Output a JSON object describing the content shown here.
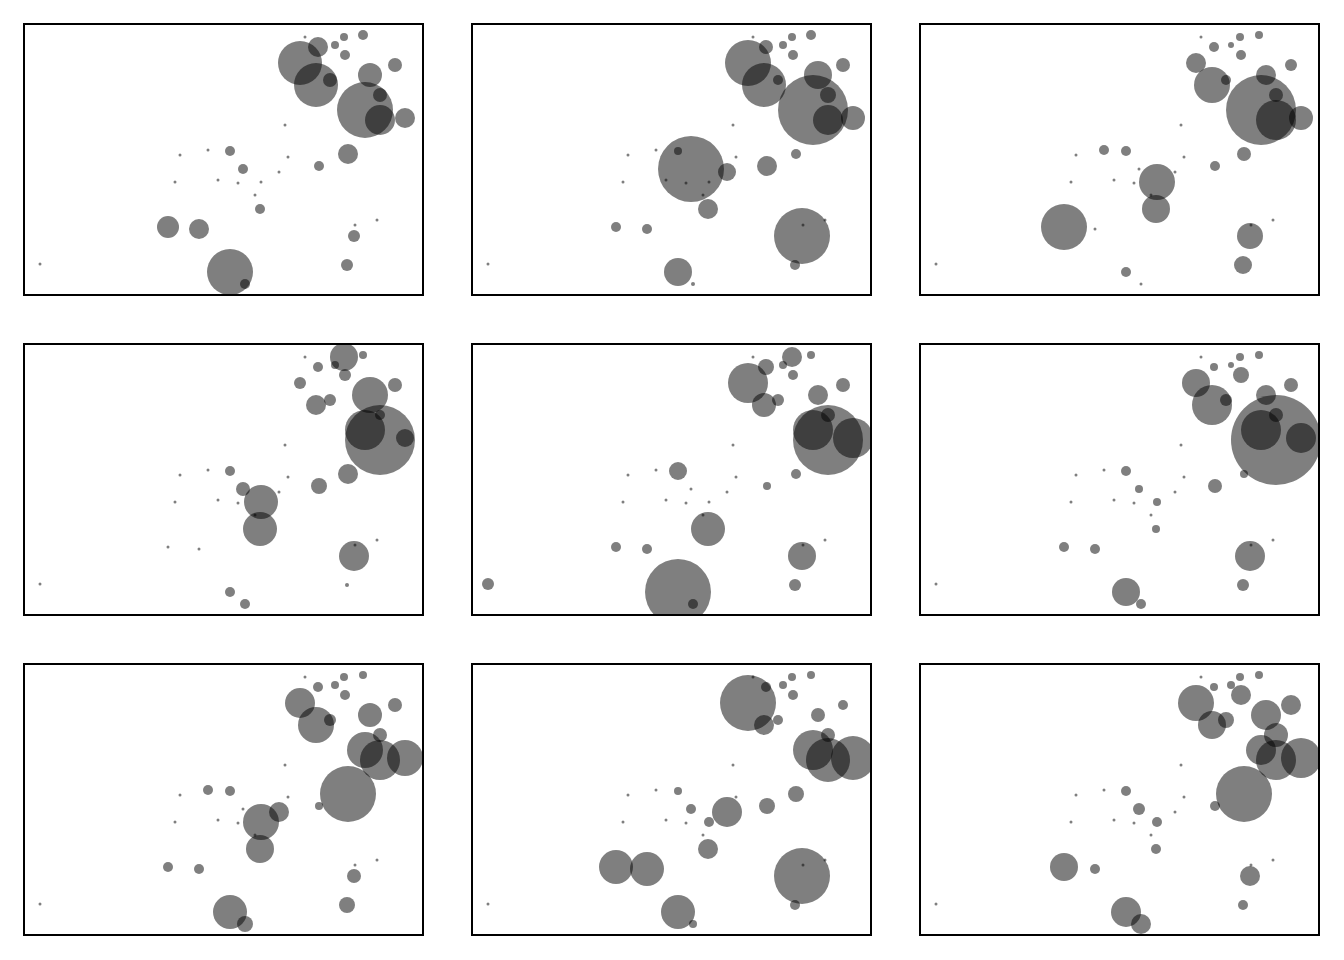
{
  "chart_data": [
    {
      "type": "scatter",
      "marker": "bubble",
      "color": "#000000",
      "grid": false,
      "tick_labels": false,
      "xlim": [
        0,
        397
      ],
      "ylim": [
        269,
        0
      ],
      "x": [
        275,
        293,
        319,
        338,
        291,
        305,
        345,
        340,
        355,
        380,
        323,
        294,
        205,
        218,
        235,
        143,
        174,
        205,
        220,
        329,
        322,
        355,
        310,
        260,
        230,
        15,
        155,
        183,
        150,
        193,
        213,
        254,
        263,
        352,
        236,
        330,
        320,
        370,
        280
      ],
      "y": [
        38,
        22,
        12,
        10,
        60,
        55,
        50,
        85,
        95,
        93,
        129,
        141,
        126,
        144,
        184,
        202,
        204,
        247,
        259,
        211,
        240,
        70,
        20,
        100,
        170,
        239,
        130,
        125,
        157,
        155,
        158,
        147,
        132,
        195,
        157,
        200,
        30,
        40,
        12
      ],
      "sizes": [
        44,
        20,
        8,
        10,
        44,
        14,
        24,
        56,
        30,
        20,
        20,
        10,
        10,
        10,
        10,
        22,
        20,
        46,
        10,
        12,
        12,
        14,
        8,
        3,
        3,
        3,
        3,
        3,
        3,
        3,
        3,
        3,
        3,
        3,
        3,
        3,
        10,
        14,
        3
      ]
    },
    {
      "type": "scatter",
      "marker": "bubble",
      "color": "#000000",
      "grid": false,
      "tick_labels": false,
      "xlim": [
        0,
        397
      ],
      "ylim": [
        269,
        0
      ],
      "x": [
        275,
        293,
        319,
        338,
        291,
        305,
        345,
        340,
        355,
        380,
        323,
        294,
        205,
        218,
        235,
        143,
        174,
        205,
        220,
        329,
        322,
        355,
        310,
        260,
        230,
        15,
        155,
        183,
        150,
        193,
        213,
        254,
        263,
        352,
        236,
        330,
        320,
        370,
        280
      ],
      "y": [
        38,
        22,
        12,
        10,
        60,
        55,
        50,
        85,
        95,
        93,
        129,
        141,
        126,
        144,
        184,
        202,
        204,
        247,
        259,
        211,
        240,
        70,
        20,
        100,
        170,
        239,
        130,
        125,
        157,
        155,
        158,
        147,
        132,
        195,
        157,
        200,
        30,
        40,
        12
      ],
      "sizes": [
        46,
        14,
        8,
        10,
        44,
        10,
        28,
        70,
        30,
        24,
        10,
        20,
        8,
        66,
        20,
        10,
        10,
        28,
        4,
        56,
        10,
        16,
        8,
        3,
        3,
        3,
        3,
        3,
        3,
        3,
        3,
        18,
        3,
        3,
        3,
        3,
        10,
        14,
        3
      ]
    },
    {
      "type": "scatter",
      "marker": "bubble",
      "color": "#000000",
      "grid": false,
      "tick_labels": false,
      "xlim": [
        0,
        397
      ],
      "ylim": [
        269,
        0
      ],
      "x": [
        275,
        293,
        319,
        338,
        291,
        305,
        345,
        340,
        355,
        380,
        323,
        294,
        205,
        218,
        235,
        143,
        174,
        205,
        220,
        329,
        322,
        355,
        310,
        260,
        230,
        15,
        155,
        183,
        150,
        193,
        213,
        254,
        263,
        352,
        236,
        330,
        320,
        370,
        280
      ],
      "y": [
        38,
        22,
        12,
        10,
        60,
        55,
        50,
        85,
        95,
        93,
        129,
        141,
        126,
        144,
        184,
        202,
        204,
        247,
        259,
        211,
        240,
        70,
        20,
        100,
        170,
        239,
        130,
        125,
        157,
        155,
        158,
        147,
        132,
        195,
        157,
        200,
        30,
        40,
        12
      ],
      "sizes": [
        20,
        10,
        8,
        8,
        36,
        10,
        20,
        70,
        40,
        24,
        14,
        10,
        10,
        3,
        28,
        46,
        3,
        10,
        3,
        26,
        18,
        14,
        6,
        3,
        3,
        3,
        3,
        10,
        3,
        3,
        3,
        3,
        3,
        3,
        36,
        3,
        10,
        12,
        3
      ]
    },
    {
      "type": "scatter",
      "marker": "bubble",
      "color": "#000000",
      "grid": false,
      "tick_labels": false,
      "xlim": [
        0,
        397
      ],
      "ylim": [
        269,
        0
      ],
      "x": [
        275,
        293,
        319,
        338,
        291,
        305,
        345,
        340,
        355,
        380,
        323,
        294,
        205,
        218,
        235,
        143,
        174,
        205,
        220,
        329,
        322,
        355,
        310,
        260,
        230,
        15,
        155,
        183,
        150,
        193,
        213,
        254,
        263,
        352,
        236,
        330,
        320,
        370,
        280
      ],
      "y": [
        38,
        22,
        12,
        10,
        60,
        55,
        50,
        85,
        95,
        93,
        129,
        141,
        126,
        144,
        184,
        202,
        204,
        247,
        259,
        211,
        240,
        70,
        20,
        100,
        170,
        239,
        130,
        125,
        157,
        155,
        158,
        147,
        132,
        195,
        157,
        200,
        30,
        40,
        12
      ],
      "sizes": [
        12,
        10,
        28,
        8,
        20,
        12,
        36,
        40,
        70,
        18,
        20,
        16,
        10,
        14,
        34,
        3,
        3,
        10,
        10,
        30,
        4,
        10,
        8,
        3,
        3,
        3,
        3,
        3,
        3,
        3,
        3,
        3,
        3,
        3,
        34,
        3,
        12,
        14,
        3
      ]
    },
    {
      "type": "scatter",
      "marker": "bubble",
      "color": "#000000",
      "grid": false,
      "tick_labels": false,
      "xlim": [
        0,
        397
      ],
      "ylim": [
        269,
        0
      ],
      "x": [
        275,
        293,
        319,
        338,
        291,
        305,
        345,
        340,
        355,
        380,
        323,
        294,
        205,
        218,
        235,
        143,
        174,
        205,
        220,
        329,
        322,
        355,
        310,
        260,
        230,
        15,
        155,
        183,
        150,
        193,
        213,
        254,
        263,
        352,
        236,
        330,
        320,
        370,
        280
      ],
      "y": [
        38,
        22,
        12,
        10,
        60,
        55,
        50,
        85,
        95,
        93,
        129,
        141,
        126,
        144,
        184,
        202,
        204,
        247,
        259,
        211,
        240,
        70,
        20,
        100,
        170,
        239,
        130,
        125,
        157,
        155,
        158,
        147,
        132,
        195,
        157,
        200,
        30,
        40,
        12
      ],
      "sizes": [
        40,
        16,
        20,
        8,
        24,
        12,
        20,
        40,
        70,
        40,
        10,
        8,
        18,
        3,
        34,
        10,
        10,
        66,
        10,
        28,
        12,
        14,
        8,
        3,
        3,
        12,
        3,
        3,
        3,
        3,
        3,
        3,
        3,
        3,
        3,
        3,
        10,
        14,
        3
      ]
    },
    {
      "type": "scatter",
      "marker": "bubble",
      "color": "#000000",
      "grid": false,
      "tick_labels": false,
      "xlim": [
        0,
        397
      ],
      "ylim": [
        269,
        0
      ],
      "x": [
        275,
        293,
        319,
        338,
        291,
        305,
        345,
        340,
        355,
        380,
        323,
        294,
        205,
        218,
        235,
        143,
        174,
        205,
        220,
        329,
        322,
        355,
        310,
        260,
        230,
        15,
        155,
        183,
        150,
        193,
        213,
        254,
        263,
        352,
        236,
        330,
        320,
        370,
        280
      ],
      "y": [
        38,
        22,
        12,
        10,
        60,
        55,
        50,
        85,
        95,
        93,
        129,
        141,
        126,
        144,
        184,
        202,
        204,
        247,
        259,
        211,
        240,
        70,
        20,
        100,
        170,
        239,
        130,
        125,
        157,
        155,
        158,
        147,
        132,
        195,
        157,
        200,
        30,
        40,
        12
      ],
      "sizes": [
        28,
        8,
        8,
        8,
        40,
        12,
        20,
        40,
        90,
        30,
        8,
        14,
        10,
        8,
        8,
        10,
        10,
        28,
        10,
        30,
        12,
        14,
        6,
        3,
        3,
        3,
        3,
        3,
        3,
        3,
        3,
        3,
        3,
        3,
        8,
        3,
        16,
        14,
        3
      ]
    },
    {
      "type": "scatter",
      "marker": "bubble",
      "color": "#000000",
      "grid": false,
      "tick_labels": false,
      "xlim": [
        0,
        397
      ],
      "ylim": [
        269,
        0
      ],
      "x": [
        275,
        293,
        319,
        338,
        291,
        305,
        345,
        340,
        355,
        380,
        323,
        294,
        205,
        218,
        235,
        143,
        174,
        205,
        220,
        329,
        322,
        355,
        310,
        260,
        230,
        15,
        155,
        183,
        150,
        193,
        213,
        254,
        263,
        352,
        236,
        330,
        320,
        370,
        280
      ],
      "y": [
        38,
        22,
        12,
        10,
        60,
        55,
        50,
        85,
        95,
        93,
        129,
        141,
        126,
        144,
        184,
        202,
        204,
        247,
        259,
        211,
        240,
        70,
        20,
        100,
        170,
        239,
        130,
        125,
        157,
        155,
        158,
        147,
        132,
        195,
        157,
        200,
        30,
        40,
        12
      ],
      "sizes": [
        30,
        10,
        8,
        8,
        36,
        12,
        24,
        36,
        40,
        36,
        56,
        8,
        10,
        3,
        28,
        10,
        10,
        34,
        16,
        14,
        16,
        14,
        8,
        3,
        3,
        3,
        3,
        10,
        3,
        3,
        3,
        20,
        3,
        3,
        36,
        3,
        10,
        14,
        3
      ]
    },
    {
      "type": "scatter",
      "marker": "bubble",
      "color": "#000000",
      "grid": false,
      "tick_labels": false,
      "xlim": [
        0,
        397
      ],
      "ylim": [
        269,
        0
      ],
      "x": [
        275,
        293,
        319,
        338,
        291,
        305,
        345,
        340,
        355,
        380,
        323,
        294,
        205,
        218,
        235,
        143,
        174,
        205,
        220,
        329,
        322,
        355,
        310,
        260,
        230,
        15,
        155,
        183,
        150,
        193,
        213,
        254,
        263,
        352,
        236,
        330,
        320,
        370,
        280
      ],
      "y": [
        38,
        22,
        12,
        10,
        60,
        55,
        50,
        85,
        95,
        93,
        129,
        141,
        126,
        144,
        184,
        202,
        204,
        247,
        259,
        211,
        240,
        70,
        20,
        100,
        170,
        239,
        130,
        125,
        157,
        155,
        158,
        147,
        132,
        195,
        157,
        200,
        30,
        40,
        12
      ],
      "sizes": [
        56,
        10,
        8,
        8,
        20,
        10,
        14,
        40,
        44,
        44,
        16,
        16,
        8,
        10,
        20,
        34,
        34,
        34,
        8,
        56,
        10,
        14,
        8,
        3,
        3,
        3,
        3,
        3,
        3,
        3,
        3,
        30,
        3,
        3,
        10,
        3,
        10,
        10,
        3
      ]
    },
    {
      "type": "scatter",
      "marker": "bubble",
      "color": "#000000",
      "grid": false,
      "tick_labels": false,
      "xlim": [
        0,
        397
      ],
      "ylim": [
        269,
        0
      ],
      "x": [
        275,
        293,
        319,
        338,
        291,
        305,
        345,
        340,
        355,
        380,
        323,
        294,
        205,
        218,
        235,
        143,
        174,
        205,
        220,
        329,
        322,
        355,
        310,
        260,
        230,
        15,
        155,
        183,
        150,
        193,
        213,
        254,
        263,
        352,
        236,
        330,
        320,
        370,
        280
      ],
      "y": [
        38,
        22,
        12,
        10,
        60,
        55,
        50,
        85,
        95,
        93,
        129,
        141,
        126,
        144,
        184,
        202,
        204,
        247,
        259,
        211,
        240,
        70,
        20,
        100,
        170,
        239,
        130,
        125,
        157,
        155,
        158,
        147,
        132,
        195,
        157,
        200,
        30,
        40,
        12
      ],
      "sizes": [
        36,
        8,
        8,
        8,
        28,
        16,
        30,
        30,
        40,
        40,
        56,
        10,
        10,
        12,
        10,
        28,
        10,
        30,
        20,
        20,
        10,
        24,
        8,
        3,
        3,
        3,
        3,
        3,
        3,
        3,
        3,
        3,
        3,
        3,
        10,
        3,
        20,
        20,
        3
      ]
    }
  ]
}
